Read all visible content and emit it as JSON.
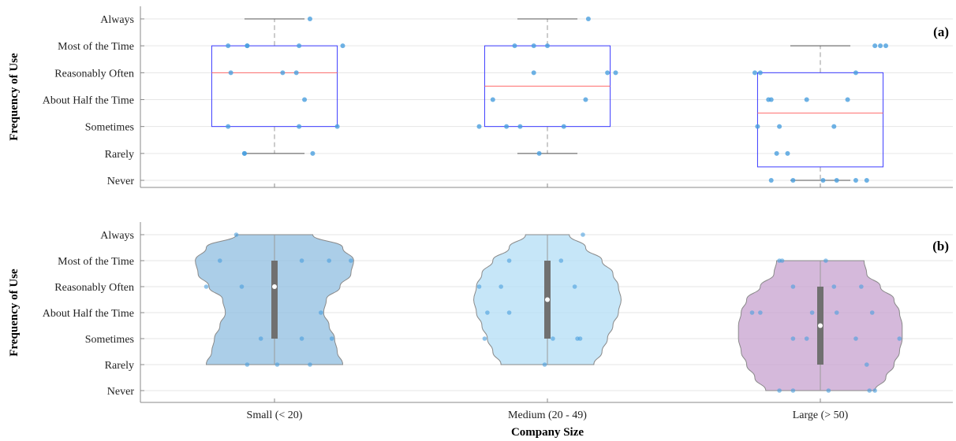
{
  "figure": {
    "xlabel": "Company Size",
    "categories": [
      "Small (< 20)",
      "Medium (20 - 49)",
      "Large (> 50)"
    ],
    "ylevels": [
      "Never",
      "Rarely",
      "Sometimes",
      "About Half the Time",
      "Reasonably Often",
      "Most of the Time",
      "Always"
    ]
  },
  "chart_data": [
    {
      "type": "box",
      "panel_label": "(a)",
      "ylabel": "Frequency of Use",
      "categories": [
        "Small (< 20)",
        "Medium (20 - 49)",
        "Large (> 50)"
      ],
      "ylim": [
        -0.4,
        6.4
      ],
      "grid": true,
      "box_color": "#3b3bff",
      "median_color": "#ff6b6b",
      "point_color": "#4a9fde",
      "boxes": [
        {
          "category": "Small (< 20)",
          "whisker_low": 1,
          "q1": 2,
          "median": 4,
          "q3": 5,
          "whisker_high": 6,
          "points": [
            [
              -0.17,
              5
            ],
            [
              -0.1,
              5
            ],
            [
              -0.1,
              5
            ],
            [
              0.09,
              5
            ],
            [
              0.25,
              5
            ],
            [
              -0.16,
              4
            ],
            [
              0.03,
              4
            ],
            [
              0.08,
              4
            ],
            [
              0.11,
              3
            ],
            [
              -0.17,
              2
            ],
            [
              0.09,
              2
            ],
            [
              0.23,
              2
            ],
            [
              -0.11,
              1
            ],
            [
              -0.11,
              1
            ],
            [
              0.14,
              1
            ],
            [
              0.13,
              6
            ]
          ]
        },
        {
          "category": "Medium (20 - 49)",
          "whisker_low": 1,
          "q1": 2,
          "median": 3.5,
          "q3": 5,
          "whisker_high": 6,
          "points": [
            [
              -0.12,
              5
            ],
            [
              -0.05,
              5
            ],
            [
              0,
              5
            ],
            [
              0.22,
              4
            ],
            [
              0.25,
              4
            ],
            [
              -0.05,
              4
            ],
            [
              0.14,
              3
            ],
            [
              -0.2,
              3
            ],
            [
              -0.25,
              2
            ],
            [
              -0.15,
              2
            ],
            [
              -0.1,
              2
            ],
            [
              0.06,
              2
            ],
            [
              -0.03,
              1
            ],
            [
              0.15,
              6
            ]
          ]
        },
        {
          "category": "Large (> 50)",
          "whisker_low": 0,
          "q1": 0.5,
          "median": 2.5,
          "q3": 4,
          "whisker_high": 5,
          "points": [
            [
              0.2,
              5
            ],
            [
              0.22,
              5
            ],
            [
              0.24,
              5
            ],
            [
              -0.24,
              4
            ],
            [
              -0.22,
              4
            ],
            [
              0.13,
              4
            ],
            [
              -0.18,
              3
            ],
            [
              -0.19,
              3
            ],
            [
              -0.05,
              3
            ],
            [
              0.1,
              3
            ],
            [
              -0.23,
              2
            ],
            [
              -0.15,
              2
            ],
            [
              0.05,
              2
            ],
            [
              -0.16,
              1
            ],
            [
              -0.12,
              1
            ],
            [
              -0.18,
              0
            ],
            [
              -0.1,
              0
            ],
            [
              0.01,
              0
            ],
            [
              0.06,
              0
            ],
            [
              0.17,
              0
            ],
            [
              0.13,
              0
            ]
          ]
        }
      ]
    },
    {
      "type": "violin",
      "panel_label": "(b)",
      "ylabel": "Frequency of Use",
      "categories": [
        "Small (< 20)",
        "Medium (20 - 49)",
        "Large (> 50)"
      ],
      "ylim": [
        -0.4,
        6.4
      ],
      "grid": true,
      "violins": [
        {
          "category": "Small (< 20)",
          "fill": "#8fbde0",
          "median": 4,
          "q1": 2,
          "q3": 5,
          "ymin": 1,
          "ymax": 6,
          "widths": [
            [
              1,
              0.25
            ],
            [
              1.5,
              0.23
            ],
            [
              2,
              0.22
            ],
            [
              2.5,
              0.2
            ],
            [
              3,
              0.18
            ],
            [
              3.5,
              0.19
            ],
            [
              4,
              0.24
            ],
            [
              4.5,
              0.28
            ],
            [
              5,
              0.29
            ],
            [
              5.5,
              0.25
            ],
            [
              6,
              0.14
            ]
          ],
          "points": [
            [
              -0.2,
              5
            ],
            [
              0.1,
              5
            ],
            [
              0.2,
              5
            ],
            [
              0.28,
              5
            ],
            [
              -0.25,
              4
            ],
            [
              -0.12,
              4
            ],
            [
              0.17,
              3
            ],
            [
              -0.05,
              2
            ],
            [
              0.1,
              2
            ],
            [
              0.21,
              2
            ],
            [
              -0.1,
              1
            ],
            [
              0.01,
              1
            ],
            [
              0.13,
              1
            ],
            [
              -0.14,
              6
            ]
          ]
        },
        {
          "category": "Medium (20 - 49)",
          "fill": "#b3ddf5",
          "median": 3.5,
          "q1": 2,
          "q3": 5,
          "ymin": 1,
          "ymax": 6,
          "widths": [
            [
              1,
              0.17
            ],
            [
              1.5,
              0.2
            ],
            [
              2,
              0.22
            ],
            [
              2.5,
              0.24
            ],
            [
              3,
              0.26
            ],
            [
              3.5,
              0.27
            ],
            [
              4,
              0.26
            ],
            [
              4.5,
              0.24
            ],
            [
              5,
              0.2
            ],
            [
              5.5,
              0.14
            ],
            [
              6,
              0.08
            ]
          ],
          "points": [
            [
              -0.14,
              5
            ],
            [
              0.05,
              5
            ],
            [
              -0.25,
              4
            ],
            [
              -0.17,
              4
            ],
            [
              0.1,
              4
            ],
            [
              -0.22,
              3
            ],
            [
              -0.14,
              3
            ],
            [
              -0.23,
              2
            ],
            [
              0.02,
              2
            ],
            [
              0.11,
              2
            ],
            [
              0.12,
              2
            ],
            [
              -0.01,
              1
            ],
            [
              0.13,
              6
            ]
          ]
        },
        {
          "category": "Large (> 50)",
          "fill": "#c7a2cf",
          "median": 2.5,
          "q1": 1,
          "q3": 4,
          "ymin": 0,
          "ymax": 5,
          "widths": [
            [
              0,
              0.2
            ],
            [
              0.5,
              0.24
            ],
            [
              1,
              0.27
            ],
            [
              1.5,
              0.29
            ],
            [
              2,
              0.3
            ],
            [
              2.5,
              0.3
            ],
            [
              3,
              0.29
            ],
            [
              3.5,
              0.27
            ],
            [
              4,
              0.22
            ],
            [
              4.5,
              0.17
            ],
            [
              5,
              0.16
            ]
          ],
          "points": [
            [
              -0.15,
              5
            ],
            [
              -0.14,
              5
            ],
            [
              0.02,
              5
            ],
            [
              -0.1,
              4
            ],
            [
              0.05,
              4
            ],
            [
              0.15,
              4
            ],
            [
              -0.25,
              3
            ],
            [
              -0.22,
              3
            ],
            [
              -0.03,
              3
            ],
            [
              0.06,
              3
            ],
            [
              0.19,
              3
            ],
            [
              -0.1,
              2
            ],
            [
              -0.05,
              2
            ],
            [
              0.13,
              2
            ],
            [
              0.29,
              2
            ],
            [
              0.17,
              1
            ],
            [
              -0.15,
              0
            ],
            [
              -0.1,
              0
            ],
            [
              0.03,
              0
            ],
            [
              0.18,
              0
            ],
            [
              0.2,
              0
            ]
          ]
        }
      ]
    }
  ]
}
